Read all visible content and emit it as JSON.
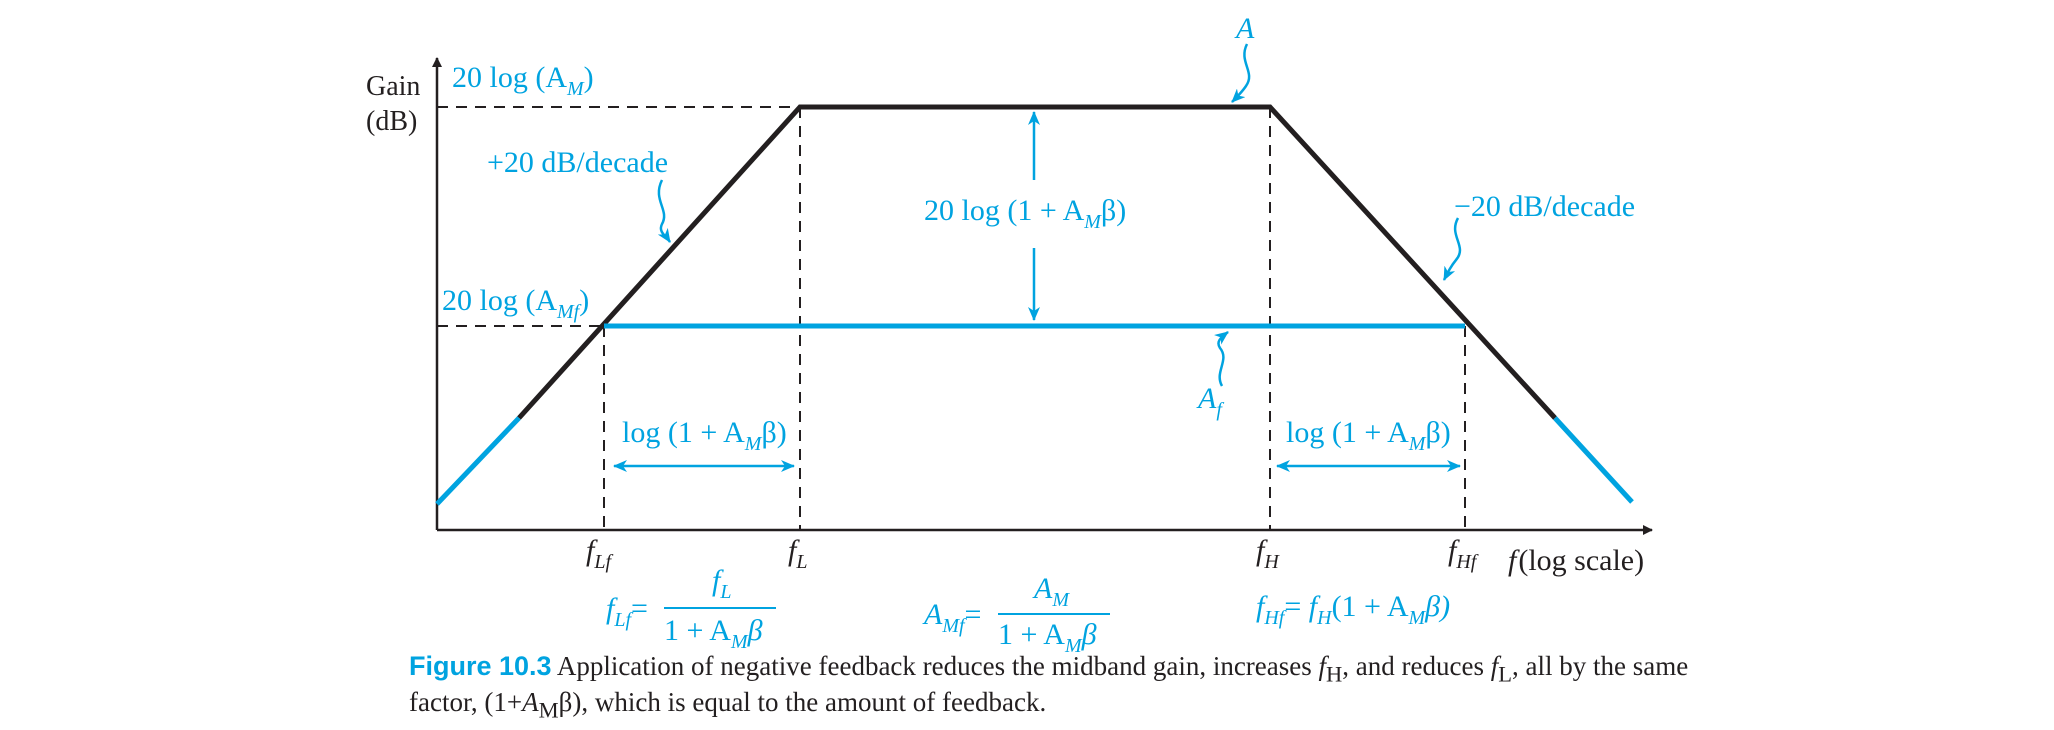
{
  "colors": {
    "open_loop": "#231f20",
    "feedback": "#00a3e0",
    "caption_label": "#00a3e0"
  },
  "axes": {
    "y_label_line1": "Gain",
    "y_label_line2": "(dB)",
    "x_label_f": "f",
    "x_label_rest": "(log scale)"
  },
  "gain_levels": {
    "open_loop": {
      "text": "20 log (A",
      "sub": "M",
      "close": ")"
    },
    "closed_loop": {
      "text": "20 log (A",
      "sub": "Mf",
      "close": ")"
    }
  },
  "slopes": {
    "rising": "+20 dB/decade",
    "falling": "−20 dB/decade"
  },
  "curve_labels": {
    "open_loop": "A",
    "closed_loop": "A",
    "closed_loop_sub": "f"
  },
  "gain_reduction": {
    "text": "20 log (1 + A",
    "sub": "M",
    "close": "β)"
  },
  "bandwidth_change": {
    "text": "log (1 + A",
    "sub": "M",
    "close": "β)"
  },
  "frequencies": {
    "f": "f",
    "lf_sub": "Lf",
    "l_sub": "L",
    "h_sub": "H",
    "hf_sub": "Hf"
  },
  "equations": {
    "flf_lhs_sub": "Lf",
    "flf_num_sub": "L",
    "den_text": "1 + A",
    "den_sub": "M",
    "den_close": "β",
    "amf_lhs": "A",
    "amf_lhs_sub": "Mf",
    "amf_num": "A",
    "amf_num_sub": "M",
    "fhf_lhs_sub": "Hf",
    "fhf_rhs_sub": "H",
    "fhf_rhs_text": "(1 + A",
    "fhf_rhs_close": "β)",
    "equals": "=",
    "equals_spaced": "= "
  },
  "caption": {
    "label": "Figure 10.3",
    "text_1": " Application of negative feedback reduces the midband gain, increases ",
    "f": "f",
    "sub_h": "H",
    "text_2": ", and reduces ",
    "sub_l": "L",
    "text_3": ", all by the same factor, (1+",
    "a": "A",
    "sub_m": "M",
    "text_4": "β), which is equal to the amount of feedback."
  }
}
